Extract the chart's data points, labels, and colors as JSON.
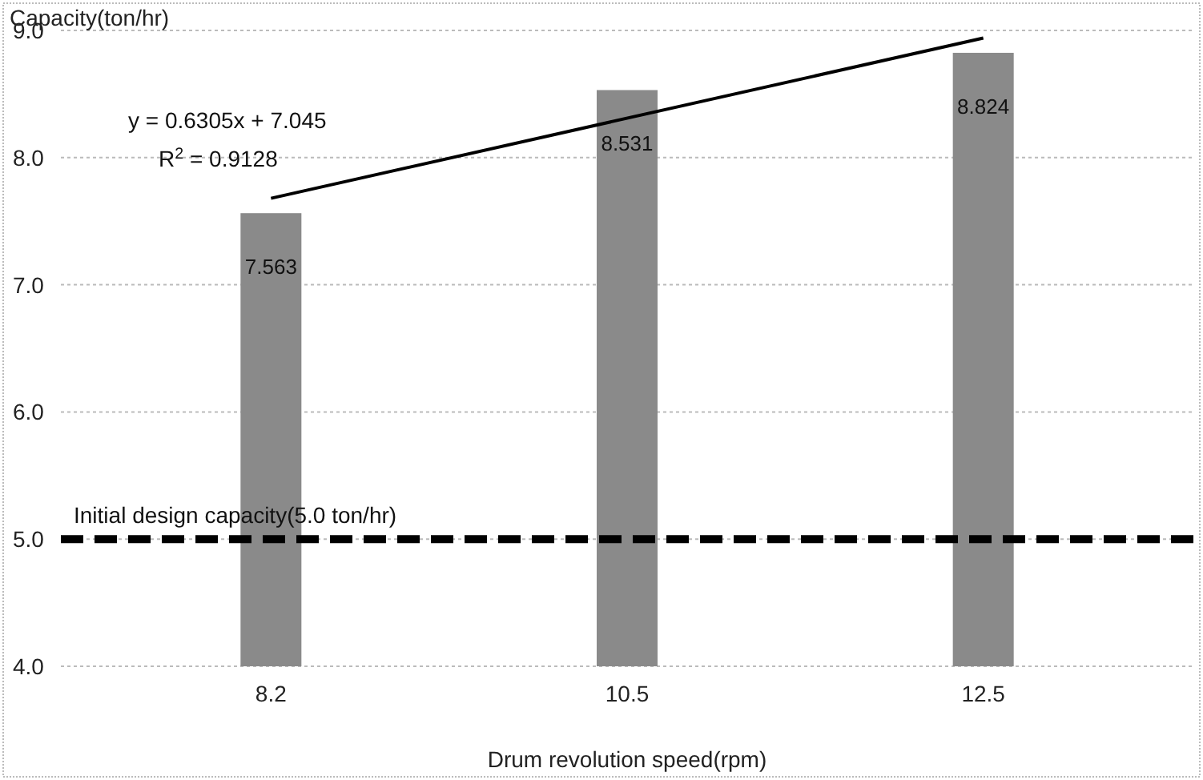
{
  "chart_data": {
    "type": "bar",
    "xlabel": "Drum revolution speed(rpm)",
    "ylabel": "Capacity(ton/hr)",
    "categories": [
      "8.2",
      "10.5",
      "12.5"
    ],
    "series": [
      {
        "color": "#8a8a8a",
        "values": [
          7.563,
          8.531,
          8.824
        ],
        "value_labels": [
          "7.563",
          "8.531",
          "8.824"
        ]
      },
      {
        "type": "line",
        "color": "#000000",
        "x": [
          "8.2",
          "12.5"
        ],
        "values": [
          7.68,
          8.94
        ]
      }
    ],
    "ylim": [
      4,
      9
    ],
    "yticks": [
      {
        "value": 4,
        "label": "4.0"
      },
      {
        "value": 5,
        "label": "5.0"
      },
      {
        "value": 6,
        "label": "6.0"
      },
      {
        "value": 7,
        "label": "7.0"
      },
      {
        "value": 8,
        "label": "8.0"
      },
      {
        "value": 9,
        "label": "9.0"
      }
    ],
    "grid": "y",
    "ref_lines": [
      {
        "axis": "y",
        "value": 5,
        "label": "Initial design capacity(5.0 ton/hr)",
        "color": "#000000",
        "line_style": "dashed"
      }
    ],
    "annotations": [
      "y = 0.6305x + 7.045",
      "R$^{2}$ = 0.9128"
    ]
  }
}
